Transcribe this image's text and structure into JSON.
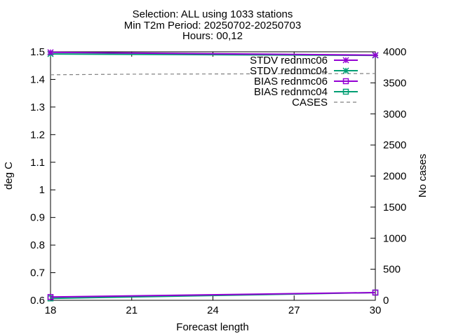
{
  "chart_data": {
    "type": "line",
    "title_lines": [
      "Selection: ALL using  1033 stations",
      "Min T2m   Period: 20250702-20250703",
      "Hours: 00,12"
    ],
    "xlabel": "Forecast length",
    "ylabel": "deg C",
    "y2label": "No cases",
    "xlim": [
      18,
      30
    ],
    "ylim": [
      0.6,
      1.5
    ],
    "y2lim": [
      0,
      4000
    ],
    "xticks": [
      18,
      21,
      24,
      27,
      30
    ],
    "yticks": [
      0.6,
      0.7,
      0.8,
      0.9,
      1.0,
      1.1,
      1.2,
      1.3,
      1.4,
      1.5
    ],
    "ytick_labels": [
      "0.6",
      "0.7",
      "0.8",
      "0.9",
      "1",
      "1.1",
      "1.2",
      "1.3",
      "1.4",
      "1.5"
    ],
    "y2ticks": [
      0,
      500,
      1000,
      1500,
      2000,
      2500,
      3000,
      3500,
      4000
    ],
    "grid": false,
    "legend_position": "top-right",
    "series": [
      {
        "name": "STDV rednmc06",
        "color": "#9400d3",
        "marker": "star",
        "dash": "solid",
        "axis": "y",
        "x": [
          18,
          30
        ],
        "values": [
          1.498,
          1.488
        ]
      },
      {
        "name": "STDV rednmc04",
        "color": "#009e73",
        "marker": "star",
        "dash": "solid",
        "axis": "y",
        "x": [
          18,
          30
        ],
        "values": [
          1.492,
          1.487
        ]
      },
      {
        "name": "BIAS rednmc06",
        "color": "#9400d3",
        "marker": "square",
        "dash": "solid",
        "axis": "y",
        "x": [
          18,
          30
        ],
        "values": [
          0.612,
          0.628
        ]
      },
      {
        "name": "BIAS rednmc04",
        "color": "#009e73",
        "marker": "square",
        "dash": "solid",
        "axis": "y",
        "x": [
          18,
          30
        ],
        "values": [
          0.607,
          0.628
        ]
      },
      {
        "name": "CASES",
        "color": "#808080",
        "marker": "none",
        "dash": "dashed",
        "axis": "y2",
        "x": [
          18,
          21,
          30
        ],
        "values": [
          3630,
          3640,
          3650
        ]
      }
    ]
  }
}
